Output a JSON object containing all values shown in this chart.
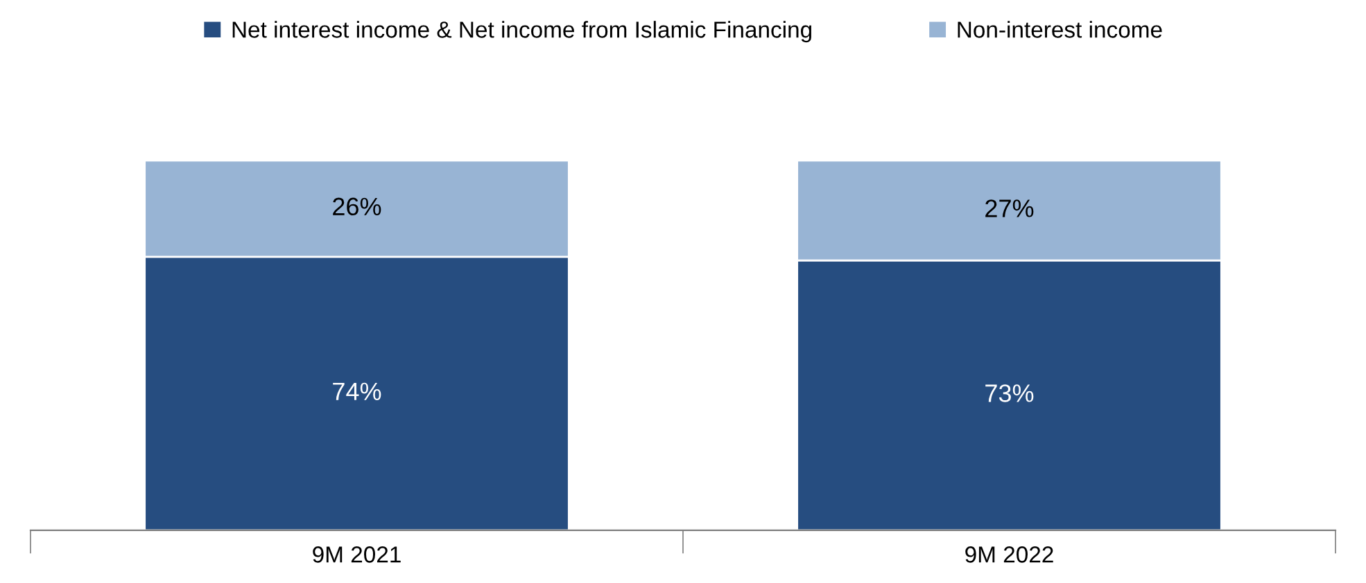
{
  "chart_data": {
    "type": "bar",
    "stacked": true,
    "categories": [
      "9M 2021",
      "9M 2022"
    ],
    "series": [
      {
        "name": "Net interest income & Net income from Islamic Financing",
        "color": "#264d80",
        "values": [
          74,
          73
        ],
        "value_labels": [
          "74%",
          "73%"
        ]
      },
      {
        "name": "Non-interest income",
        "color": "#98b4d4",
        "values": [
          26,
          27
        ],
        "value_labels": [
          "26%",
          "27%"
        ]
      }
    ],
    "ylim": [
      0,
      100
    ],
    "tick_labels": "x",
    "grid": false,
    "legend": "top"
  }
}
